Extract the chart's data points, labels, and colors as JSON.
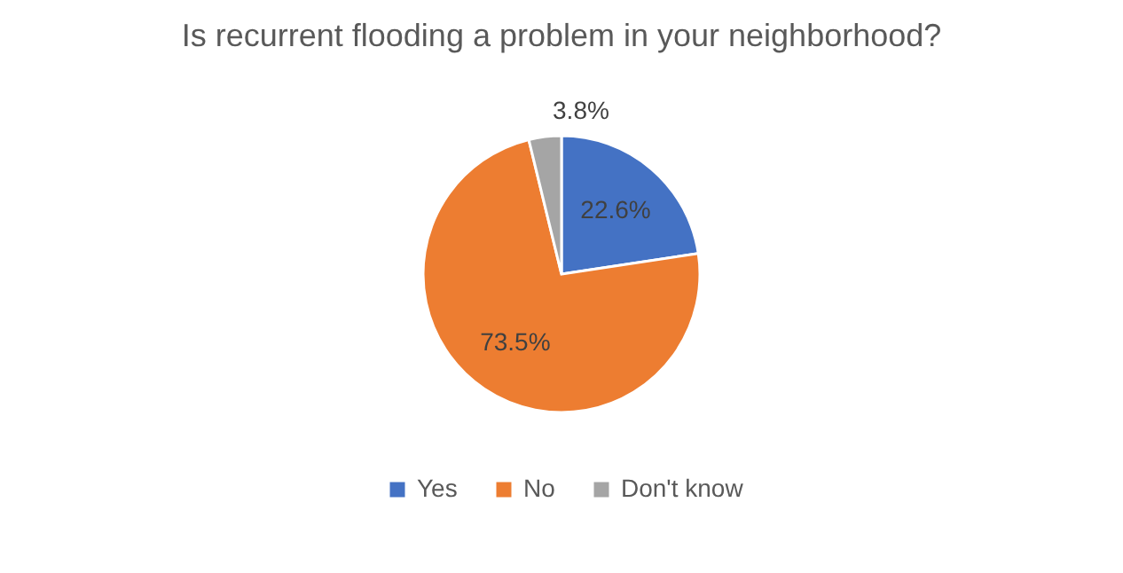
{
  "chart_data": {
    "type": "pie",
    "title": "Is recurrent flooding a problem in your neighborhood?",
    "categories": [
      "Yes",
      "No",
      "Don't know"
    ],
    "values": [
      22.6,
      73.5,
      3.8
    ],
    "colors": [
      "#4472c4",
      "#ed7d31",
      "#a5a5a5"
    ],
    "value_labels": [
      "22.6%",
      "73.5%",
      "3.8%"
    ],
    "legend": "bottom"
  }
}
